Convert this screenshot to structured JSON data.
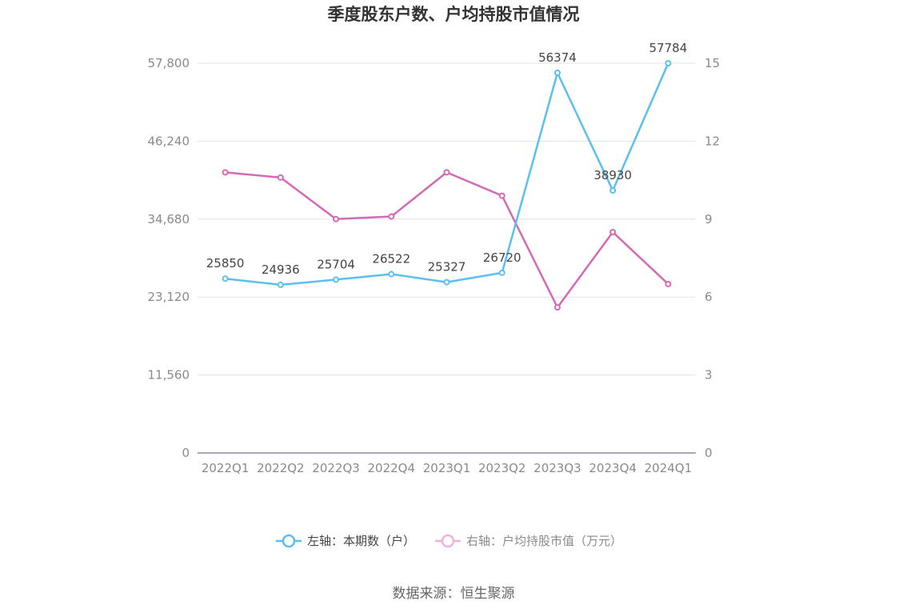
{
  "chart_data": {
    "type": "line",
    "title": "季度股东户数、户均持股市值情况",
    "categories": [
      "2022Q1",
      "2022Q2",
      "2022Q3",
      "2022Q4",
      "2023Q1",
      "2023Q2",
      "2023Q3",
      "2023Q4",
      "2024Q1"
    ],
    "left_axis": {
      "ticks": [
        "0",
        "11,560",
        "23,120",
        "34,680",
        "46,240",
        "57,800"
      ],
      "ylim": [
        0,
        57800
      ]
    },
    "right_axis": {
      "ticks": [
        "0",
        "3",
        "6",
        "9",
        "12",
        "15"
      ],
      "ylim": [
        0,
        15
      ]
    },
    "series": [
      {
        "name": "左轴：本期数（户）",
        "axis": "left",
        "color": "#5bbff0",
        "values": [
          25850,
          24936,
          25704,
          26522,
          25327,
          26720,
          56374,
          38930,
          57784
        ],
        "labels": [
          "25850",
          "24936",
          "25704",
          "26522",
          "25327",
          "26720",
          "56374",
          "38930",
          "57784"
        ]
      },
      {
        "name": "右轴：户均持股市值（万元）",
        "axis": "right",
        "color": "#d46ab4",
        "values": [
          10.8,
          10.6,
          9.0,
          9.1,
          10.8,
          9.9,
          5.6,
          8.5,
          6.5
        ]
      }
    ],
    "grid": true,
    "legend_position": "bottom",
    "source": "数据来源：恒生聚源"
  }
}
